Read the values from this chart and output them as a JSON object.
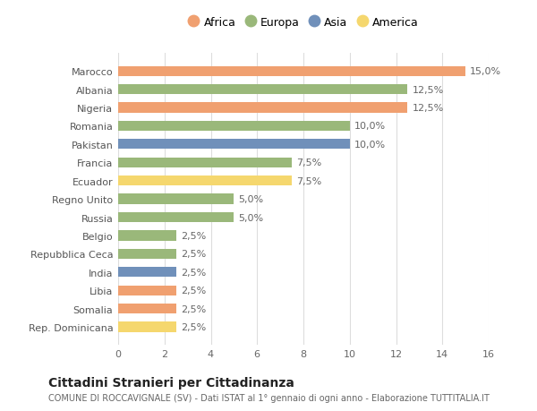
{
  "countries": [
    "Rep. Dominicana",
    "Somalia",
    "Libia",
    "India",
    "Repubblica Ceca",
    "Belgio",
    "Russia",
    "Regno Unito",
    "Ecuador",
    "Francia",
    "Pakistan",
    "Romania",
    "Nigeria",
    "Albania",
    "Marocco"
  ],
  "values": [
    2.5,
    2.5,
    2.5,
    2.5,
    2.5,
    2.5,
    5.0,
    5.0,
    7.5,
    7.5,
    10.0,
    10.0,
    12.5,
    12.5,
    15.0
  ],
  "colors": [
    "#f5d76e",
    "#f0a070",
    "#f0a070",
    "#7090ba",
    "#9ab87a",
    "#9ab87a",
    "#9ab87a",
    "#9ab87a",
    "#f5d76e",
    "#9ab87a",
    "#7090ba",
    "#9ab87a",
    "#f0a070",
    "#9ab87a",
    "#f0a070"
  ],
  "legend": [
    {
      "label": "Africa",
      "color": "#f0a070"
    },
    {
      "label": "Europa",
      "color": "#9ab87a"
    },
    {
      "label": "Asia",
      "color": "#7090ba"
    },
    {
      "label": "America",
      "color": "#f5d76e"
    }
  ],
  "xlim": [
    0,
    16
  ],
  "xticks": [
    0,
    2,
    4,
    6,
    8,
    10,
    12,
    14,
    16
  ],
  "title": "Cittadini Stranieri per Cittadinanza",
  "subtitle": "COMUNE DI ROCCAVIGNALE (SV) - Dati ISTAT al 1° gennaio di ogni anno - Elaborazione TUTTITALIA.IT",
  "bg_color": "#ffffff",
  "grid_color": "#dddddd",
  "bar_height": 0.55,
  "label_fontsize": 8,
  "tick_fontsize": 8,
  "title_fontsize": 10,
  "subtitle_fontsize": 7,
  "legend_fontsize": 9
}
